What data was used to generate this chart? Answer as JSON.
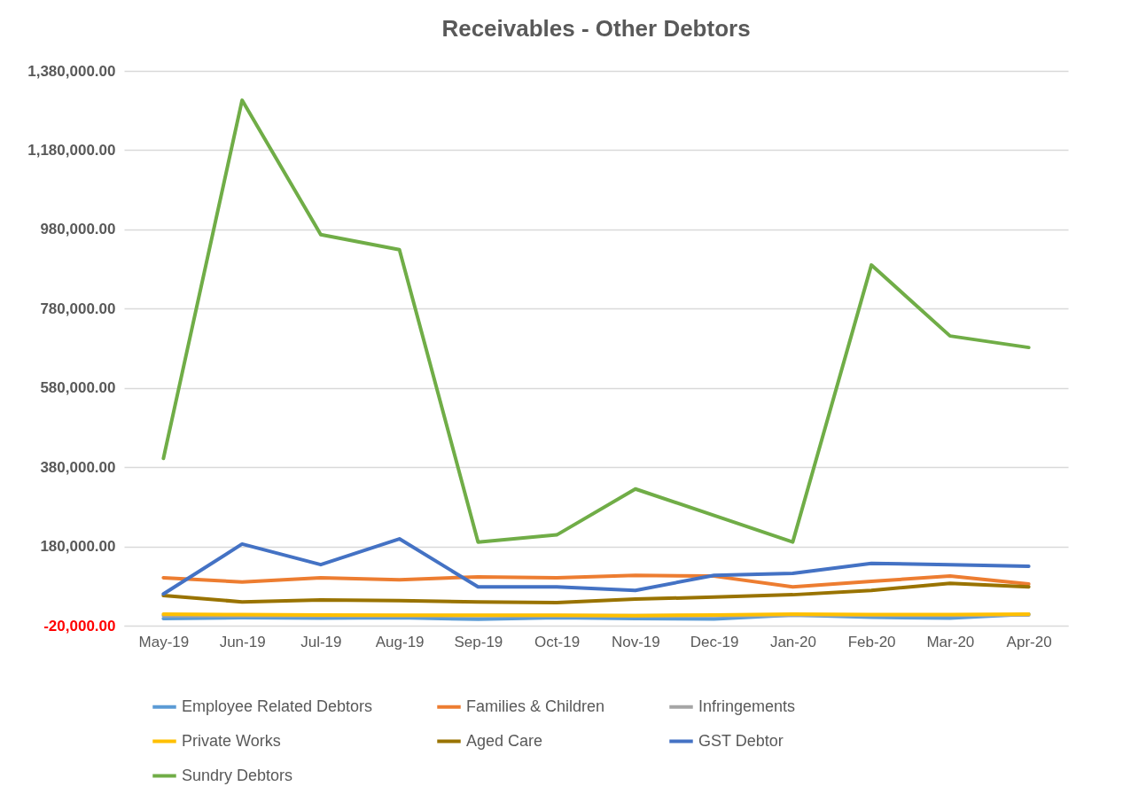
{
  "chart_data": {
    "type": "line",
    "title": "Receivables - Other Debtors",
    "categories": [
      "May-19",
      "Jun-19",
      "Jul-19",
      "Aug-19",
      "Sep-19",
      "Oct-19",
      "Nov-19",
      "Dec-19",
      "Jan-20",
      "Feb-20",
      "Mar-20",
      "Apr-20"
    ],
    "series": [
      {
        "name": "Employee Related Debtors",
        "color": "#5b9bd5",
        "values": [
          -2000,
          0,
          -1000,
          0,
          -4000,
          0,
          -2000,
          -3000,
          7000,
          1000,
          -1000,
          9000
        ]
      },
      {
        "name": "Families & Children",
        "color": "#ed7d31",
        "values": [
          101000,
          90000,
          101000,
          96000,
          103000,
          101000,
          107000,
          105000,
          78000,
          92000,
          105000,
          85000
        ]
      },
      {
        "name": "Infringements",
        "color": "#a5a5a5",
        "values": [
          5000,
          5000,
          5000,
          5000,
          5000,
          5000,
          5000,
          5000,
          6000,
          6000,
          6000,
          7000
        ]
      },
      {
        "name": "Private Works",
        "color": "#ffc000",
        "values": [
          9000,
          8000,
          7000,
          6000,
          6000,
          6000,
          5000,
          7000,
          9000,
          8000,
          8000,
          9000
        ]
      },
      {
        "name": "Aged Care",
        "color": "#997300",
        "values": [
          56000,
          40000,
          45000,
          43000,
          40000,
          38000,
          47000,
          52000,
          58000,
          69000,
          87000,
          78000
        ]
      },
      {
        "name": "GST Debtor",
        "color": "#4472c4",
        "values": [
          60000,
          186000,
          134000,
          199000,
          78000,
          78000,
          69000,
          107000,
          112000,
          137000,
          134000,
          130000
        ]
      },
      {
        "name": "Sundry Debtors",
        "color": "#70ad47",
        "values": [
          402000,
          1306000,
          967000,
          929000,
          191000,
          209000,
          325000,
          258000,
          191000,
          890000,
          711000,
          682000
        ]
      }
    ],
    "ylim": [
      -20000,
      1380000
    ],
    "yticks": [
      {
        "value": -20000,
        "label": "-20,000.00"
      },
      {
        "value": 180000,
        "label": "180,000.00"
      },
      {
        "value": 380000,
        "label": "380,000.00"
      },
      {
        "value": 580000,
        "label": "580,000.00"
      },
      {
        "value": 780000,
        "label": "780,000.00"
      },
      {
        "value": 980000,
        "label": "980,000.00"
      },
      {
        "value": 1180000,
        "label": "1,180,000.00"
      },
      {
        "value": 1380000,
        "label": "1,380,000.00"
      }
    ],
    "grid": "y",
    "legend": "bottom",
    "marker": "none",
    "line_style": "solid"
  }
}
